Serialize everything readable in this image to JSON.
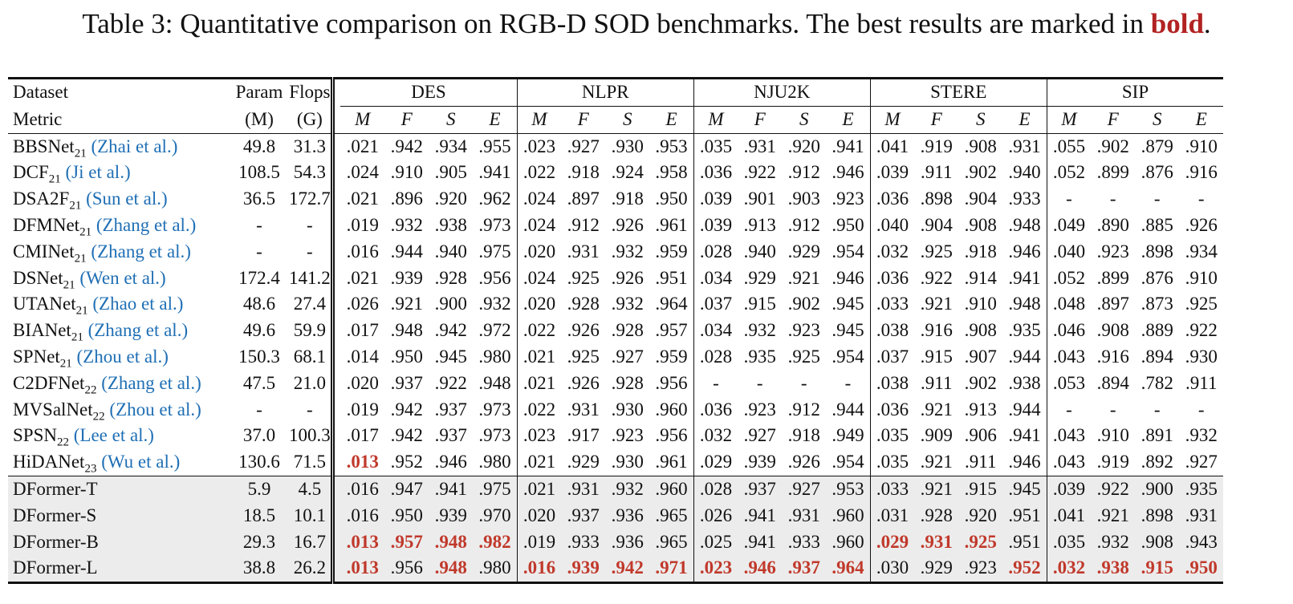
{
  "caption": {
    "prefix": "Table 3: Quantitative comparison on RGB-D SOD benchmarks. The best results are marked in ",
    "bold_word": "bold",
    "suffix": "."
  },
  "header": {
    "dataset_label": "Dataset",
    "metric_label": "Metric",
    "param_label": "Param",
    "param_unit": "(M)",
    "flops_label": "Flops",
    "flops_unit": "(G)",
    "datasets": [
      "DES",
      "NLPR",
      "NJU2K",
      "STERE",
      "SIP"
    ],
    "metrics": [
      "M",
      "F",
      "S",
      "E"
    ]
  },
  "rows": [
    {
      "name": "BBSNet",
      "sub": "21",
      "ref": "(Zhai et al.)",
      "param": "49.8",
      "flops": "31.3",
      "cells": [
        ".021",
        ".942",
        ".934",
        ".955",
        ".023",
        ".927",
        ".930",
        ".953",
        ".035",
        ".931",
        ".920",
        ".941",
        ".041",
        ".919",
        ".908",
        ".931",
        ".055",
        ".902",
        ".879",
        ".910"
      ],
      "best": [],
      "gray": false
    },
    {
      "name": "DCF",
      "sub": "21",
      "ref": "(Ji et al.)",
      "param": "108.5",
      "flops": "54.3",
      "cells": [
        ".024",
        ".910",
        ".905",
        ".941",
        ".022",
        ".918",
        ".924",
        ".958",
        ".036",
        ".922",
        ".912",
        ".946",
        ".039",
        ".911",
        ".902",
        ".940",
        ".052",
        ".899",
        ".876",
        ".916"
      ],
      "best": [],
      "gray": false
    },
    {
      "name": "DSA2F",
      "sub": "21",
      "ref": "(Sun et al.)",
      "param": "36.5",
      "flops": "172.7",
      "cells": [
        ".021",
        ".896",
        ".920",
        ".962",
        ".024",
        ".897",
        ".918",
        ".950",
        ".039",
        ".901",
        ".903",
        ".923",
        ".036",
        ".898",
        ".904",
        ".933",
        "-",
        "-",
        "-",
        "-"
      ],
      "best": [],
      "gray": false
    },
    {
      "name": "DFMNet",
      "sub": "21",
      "ref": "(Zhang et al.)",
      "param": "-",
      "flops": "-",
      "cells": [
        ".019",
        ".932",
        ".938",
        ".973",
        ".024",
        ".912",
        ".926",
        ".961",
        ".039",
        ".913",
        ".912",
        ".950",
        ".040",
        ".904",
        ".908",
        ".948",
        ".049",
        ".890",
        ".885",
        ".926"
      ],
      "best": [],
      "gray": false
    },
    {
      "name": "CMINet",
      "sub": "21",
      "ref": "(Zhang et al.)",
      "param": "-",
      "flops": "-",
      "cells": [
        ".016",
        ".944",
        ".940",
        ".975",
        ".020",
        ".931",
        ".932",
        ".959",
        ".028",
        ".940",
        ".929",
        ".954",
        ".032",
        ".925",
        ".918",
        ".946",
        ".040",
        ".923",
        ".898",
        ".934"
      ],
      "best": [],
      "gray": false
    },
    {
      "name": "DSNet",
      "sub": "21",
      "ref": "(Wen et al.)",
      "param": "172.4",
      "flops": "141.2",
      "cells": [
        ".021",
        ".939",
        ".928",
        ".956",
        ".024",
        ".925",
        ".926",
        ".951",
        ".034",
        ".929",
        ".921",
        ".946",
        ".036",
        ".922",
        ".914",
        ".941",
        ".052",
        ".899",
        ".876",
        ".910"
      ],
      "best": [],
      "gray": false
    },
    {
      "name": "UTANet",
      "sub": "21",
      "ref": "(Zhao et al.)",
      "param": "48.6",
      "flops": "27.4",
      "cells": [
        ".026",
        ".921",
        ".900",
        ".932",
        ".020",
        ".928",
        ".932",
        ".964",
        ".037",
        ".915",
        ".902",
        ".945",
        ".033",
        ".921",
        ".910",
        ".948",
        ".048",
        ".897",
        ".873",
        ".925"
      ],
      "best": [],
      "gray": false
    },
    {
      "name": "BIANet",
      "sub": "21",
      "ref": "(Zhang et al.)",
      "param": "49.6",
      "flops": "59.9",
      "cells": [
        ".017",
        ".948",
        ".942",
        ".972",
        ".022",
        ".926",
        ".928",
        ".957",
        ".034",
        ".932",
        ".923",
        ".945",
        ".038",
        ".916",
        ".908",
        ".935",
        ".046",
        ".908",
        ".889",
        ".922"
      ],
      "best": [],
      "gray": false
    },
    {
      "name": "SPNet",
      "sub": "21",
      "ref": "(Zhou et al.)",
      "param": "150.3",
      "flops": "68.1",
      "cells": [
        ".014",
        ".950",
        ".945",
        ".980",
        ".021",
        ".925",
        ".927",
        ".959",
        ".028",
        ".935",
        ".925",
        ".954",
        ".037",
        ".915",
        ".907",
        ".944",
        ".043",
        ".916",
        ".894",
        ".930"
      ],
      "best": [],
      "gray": false
    },
    {
      "name": "C2DFNet",
      "sub": "22",
      "ref": "(Zhang et al.)",
      "param": "47.5",
      "flops": "21.0",
      "cells": [
        ".020",
        ".937",
        ".922",
        ".948",
        ".021",
        ".926",
        ".928",
        ".956",
        "-",
        "-",
        "-",
        "-",
        ".038",
        ".911",
        ".902",
        ".938",
        ".053",
        ".894",
        ".782",
        ".911"
      ],
      "best": [],
      "gray": false
    },
    {
      "name": "MVSalNet",
      "sub": "22",
      "ref": "(Zhou et al.)",
      "param": "-",
      "flops": "-",
      "cells": [
        ".019",
        ".942",
        ".937",
        ".973",
        ".022",
        ".931",
        ".930",
        ".960",
        ".036",
        ".923",
        ".912",
        ".944",
        ".036",
        ".921",
        ".913",
        ".944",
        "-",
        "-",
        "-",
        "-"
      ],
      "best": [],
      "gray": false
    },
    {
      "name": "SPSN",
      "sub": "22",
      "ref": "(Lee et al.)",
      "param": "37.0",
      "flops": "100.3",
      "cells": [
        ".017",
        ".942",
        ".937",
        ".973",
        ".023",
        ".917",
        ".923",
        ".956",
        ".032",
        ".927",
        ".918",
        ".949",
        ".035",
        ".909",
        ".906",
        ".941",
        ".043",
        ".910",
        ".891",
        ".932"
      ],
      "best": [],
      "gray": false
    },
    {
      "name": "HiDANet",
      "sub": "23",
      "ref": "(Wu et al.)",
      "param": "130.6",
      "flops": "71.5",
      "cells": [
        ".013",
        ".952",
        ".946",
        ".980",
        ".021",
        ".929",
        ".930",
        ".961",
        ".029",
        ".939",
        ".926",
        ".954",
        ".035",
        ".921",
        ".911",
        ".946",
        ".043",
        ".919",
        ".892",
        ".927"
      ],
      "best": [
        0
      ],
      "gray": false
    },
    {
      "name": "DFormer-T",
      "sub": "",
      "ref": "",
      "param": "5.9",
      "flops": "4.5",
      "cells": [
        ".016",
        ".947",
        ".941",
        ".975",
        ".021",
        ".931",
        ".932",
        ".960",
        ".028",
        ".937",
        ".927",
        ".953",
        ".033",
        ".921",
        ".915",
        ".945",
        ".039",
        ".922",
        ".900",
        ".935"
      ],
      "best": [],
      "gray": true
    },
    {
      "name": "DFormer-S",
      "sub": "",
      "ref": "",
      "param": "18.5",
      "flops": "10.1",
      "cells": [
        ".016",
        ".950",
        ".939",
        ".970",
        ".020",
        ".937",
        ".936",
        ".965",
        ".026",
        ".941",
        ".931",
        ".960",
        ".031",
        ".928",
        ".920",
        ".951",
        ".041",
        ".921",
        ".898",
        ".931"
      ],
      "best": [],
      "gray": true
    },
    {
      "name": "DFormer-B",
      "sub": "",
      "ref": "",
      "param": "29.3",
      "flops": "16.7",
      "cells": [
        ".013",
        ".957",
        ".948",
        ".982",
        ".019",
        ".933",
        ".936",
        ".965",
        ".025",
        ".941",
        ".933",
        ".960",
        ".029",
        ".931",
        ".925",
        ".951",
        ".035",
        ".932",
        ".908",
        ".943"
      ],
      "best": [
        0,
        1,
        2,
        3,
        12,
        13,
        14
      ],
      "gray": true
    },
    {
      "name": "DFormer-L",
      "sub": "",
      "ref": "",
      "param": "38.8",
      "flops": "26.2",
      "cells": [
        ".013",
        ".956",
        ".948",
        ".980",
        ".016",
        ".939",
        ".942",
        ".971",
        ".023",
        ".946",
        ".937",
        ".964",
        ".030",
        ".929",
        ".923",
        ".952",
        ".032",
        ".938",
        ".915",
        ".950"
      ],
      "best": [
        0,
        2,
        4,
        5,
        6,
        7,
        8,
        9,
        10,
        11,
        15,
        16,
        17,
        18,
        19
      ],
      "gray": true
    }
  ]
}
